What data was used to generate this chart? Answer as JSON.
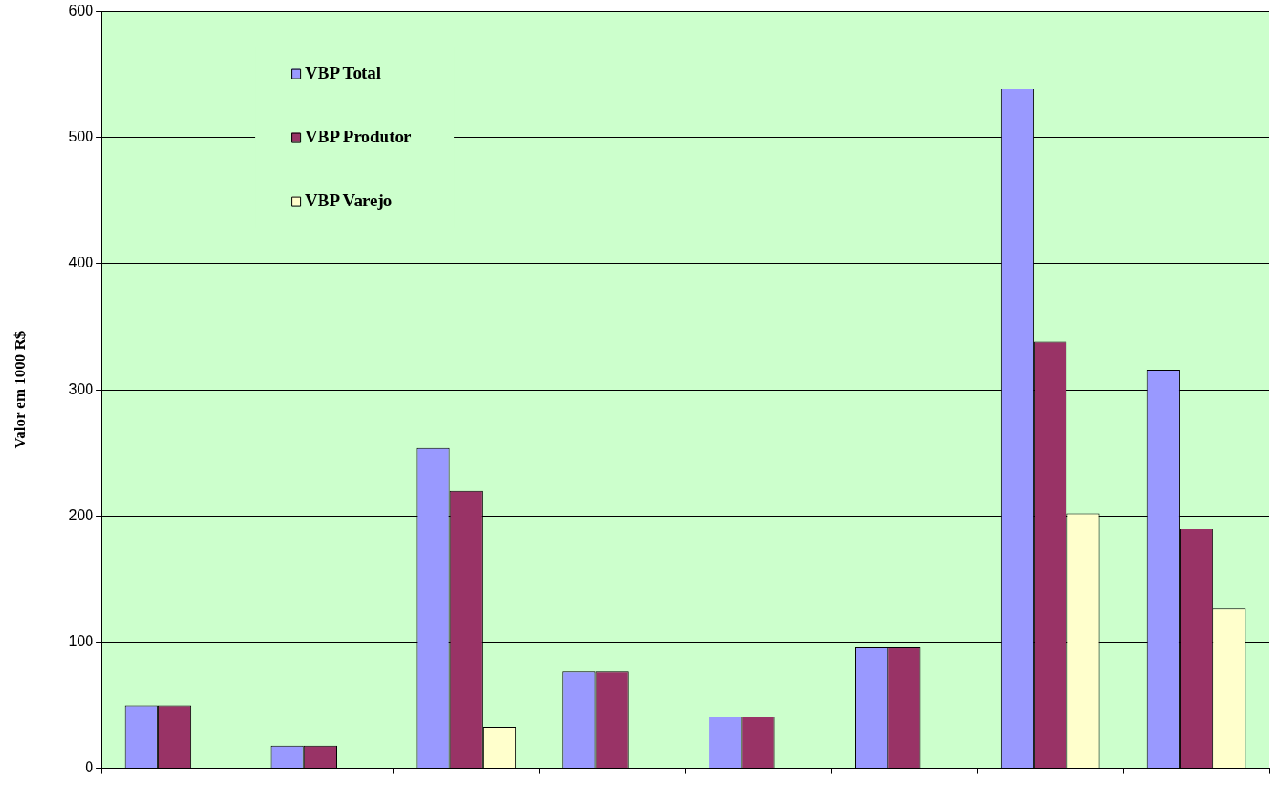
{
  "chart_data": {
    "type": "bar",
    "ylabel": "Valor em 1000 R$",
    "categories": [
      null,
      null,
      null,
      null,
      null,
      null,
      null,
      null
    ],
    "series": [
      {
        "name": "VBP Total",
        "color": "#9999ff",
        "values": [
          50,
          18,
          254,
          77,
          41,
          96,
          539,
          316
        ]
      },
      {
        "name": "VBP Produtor",
        "color": "#993366",
        "values": [
          50,
          18,
          220,
          77,
          41,
          96,
          338,
          190
        ]
      },
      {
        "name": "VBP Varejo",
        "color": "#ffffcc",
        "values": [
          null,
          null,
          33,
          null,
          null,
          null,
          202,
          127
        ]
      }
    ],
    "ylim": [
      0,
      600
    ],
    "yticks": [
      0,
      100,
      200,
      300,
      400,
      500,
      600
    ],
    "grid": "y",
    "legend": "top left"
  }
}
